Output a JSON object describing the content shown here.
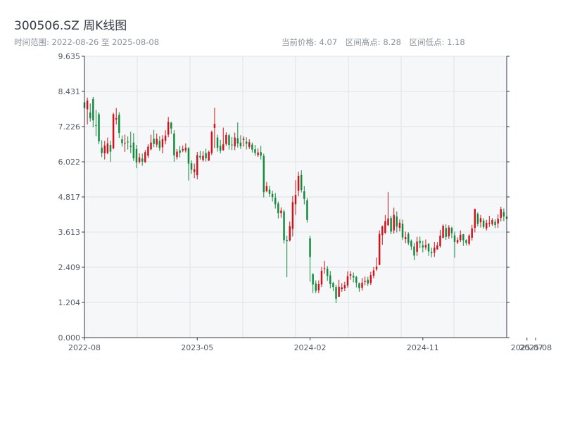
{
  "header": {
    "title": "300506.SZ 周K线图",
    "range_label": "时间范围: 2022-08-26 至 2025-08-08",
    "current_price": "当前价格: 4.07",
    "interval_high": "区间高点: 8.28",
    "interval_low": "区间低点: 1.18"
  },
  "colors": {
    "up": "#d0121b",
    "down": "#138a3c",
    "plot_bg": "#f6f7f9",
    "grid": "#dfe3e8",
    "axis": "#333a45"
  },
  "chart_data": {
    "type": "candlestick",
    "title": "300506.SZ 周K线图",
    "ylim": [
      0.0,
      9.635
    ],
    "y_ticks": [
      "0.000",
      "1.204",
      "2.409",
      "3.613",
      "4.817",
      "6.022",
      "7.226",
      "8.431",
      "9.635"
    ],
    "x_ticks": [
      "2022-08",
      "2023-05",
      "2024-02",
      "2024-11",
      "2025-07",
      "2025-08"
    ],
    "x_tick_positions": [
      0,
      39,
      78,
      117,
      153,
      156
    ],
    "grid": true,
    "up_color": "#d0121b",
    "down_color": "#138a3c",
    "candles": [
      [
        8.06,
        7.86,
        8.28,
        7.66
      ],
      [
        7.82,
        8.12,
        8.22,
        7.3
      ],
      [
        7.71,
        7.51,
        8.02,
        7.4
      ],
      [
        8.17,
        7.44,
        8.24,
        7.2
      ],
      [
        7.28,
        7.26,
        7.8,
        6.9
      ],
      [
        7.65,
        6.72,
        7.72,
        6.62
      ],
      [
        6.5,
        6.32,
        6.76,
        6.18
      ],
      [
        6.31,
        6.58,
        6.74,
        6.1
      ],
      [
        6.32,
        6.65,
        6.85,
        6.28
      ],
      [
        6.6,
        6.37,
        6.74,
        6.02
      ],
      [
        6.48,
        7.65,
        7.7,
        6.45
      ],
      [
        7.47,
        7.52,
        7.86,
        7.3
      ],
      [
        7.63,
        7.01,
        7.72,
        6.84
      ],
      [
        6.79,
        6.66,
        6.92,
        6.54
      ],
      [
        6.66,
        6.67,
        6.95,
        6.36
      ],
      [
        6.71,
        6.7,
        6.89,
        6.44
      ],
      [
        6.57,
        6.53,
        7.05,
        6.32
      ],
      [
        6.68,
        6.14,
        7.0,
        6.05
      ],
      [
        6.46,
        6.0,
        6.6,
        5.8
      ],
      [
        6.02,
        6.17,
        6.31,
        5.96
      ],
      [
        6.13,
        6.03,
        6.3,
        5.89
      ],
      [
        6.01,
        6.35,
        6.42,
        5.98
      ],
      [
        6.23,
        6.54,
        6.62,
        6.15
      ],
      [
        6.45,
        6.68,
        6.95,
        6.41
      ],
      [
        6.81,
        6.63,
        7.11,
        6.52
      ],
      [
        6.61,
        6.81,
        6.99,
        6.52
      ],
      [
        6.74,
        6.49,
        6.9,
        6.39
      ],
      [
        6.52,
        6.8,
        6.93,
        6.31
      ],
      [
        6.74,
        6.92,
        7.1,
        6.62
      ],
      [
        6.95,
        7.39,
        7.56,
        6.86
      ],
      [
        7.36,
        7.16,
        7.39,
        6.98
      ],
      [
        6.99,
        6.24,
        7.1,
        6.02
      ],
      [
        6.18,
        6.37,
        6.46,
        6.1
      ],
      [
        6.41,
        6.33,
        6.56,
        6.17
      ],
      [
        6.41,
        6.46,
        6.58,
        6.35
      ],
      [
        6.41,
        6.5,
        6.65,
        6.34
      ],
      [
        6.49,
        5.96,
        6.52,
        5.38
      ],
      [
        5.97,
        5.75,
        6.07,
        5.61
      ],
      [
        5.67,
        5.77,
        5.96,
        5.46
      ],
      [
        5.56,
        6.25,
        6.36,
        5.42
      ],
      [
        6.22,
        6.17,
        6.39,
        6.09
      ],
      [
        6.08,
        6.23,
        6.38,
        6.03
      ],
      [
        6.32,
        6.14,
        6.47,
        6.03
      ],
      [
        6.06,
        6.36,
        6.41,
        6.05
      ],
      [
        6.32,
        7.04,
        7.09,
        6.25
      ],
      [
        7.18,
        7.32,
        7.87,
        6.49
      ],
      [
        6.85,
        6.5,
        6.95,
        6.37
      ],
      [
        6.57,
        6.4,
        6.77,
        6.31
      ],
      [
        6.42,
        6.62,
        7.19,
        6.4
      ],
      [
        6.63,
        6.94,
        7.03,
        6.57
      ],
      [
        6.93,
        6.6,
        6.98,
        6.44
      ],
      [
        6.61,
        6.59,
        6.87,
        6.42
      ],
      [
        6.55,
        6.85,
        7.02,
        6.42
      ],
      [
        6.83,
        6.65,
        7.37,
        6.51
      ],
      [
        6.68,
        6.55,
        6.93,
        6.46
      ],
      [
        6.77,
        6.81,
        6.89,
        6.54
      ],
      [
        6.71,
        6.64,
        6.86,
        6.44
      ],
      [
        6.53,
        6.69,
        6.79,
        6.46
      ],
      [
        6.61,
        6.44,
        6.68,
        6.34
      ],
      [
        6.45,
        6.32,
        6.6,
        6.22
      ],
      [
        6.25,
        6.34,
        6.48,
        6.19
      ],
      [
        6.35,
        6.23,
        6.57,
        6.1
      ],
      [
        6.22,
        4.98,
        6.3,
        4.8
      ],
      [
        5.01,
        5.19,
        5.33,
        4.98
      ],
      [
        5.07,
        4.92,
        5.2,
        4.82
      ],
      [
        4.92,
        4.81,
        5.03,
        4.66
      ],
      [
        4.79,
        4.57,
        4.95,
        4.42
      ],
      [
        4.59,
        4.26,
        4.66,
        4.08
      ],
      [
        4.26,
        4.35,
        4.46,
        4.1
      ],
      [
        4.32,
        3.34,
        4.38,
        3.22
      ],
      [
        3.34,
        3.3,
        3.49,
        2.07
      ],
      [
        3.33,
        3.82,
        3.98,
        3.29
      ],
      [
        3.72,
        4.64,
        4.85,
        3.46
      ],
      [
        4.57,
        4.89,
        5.39,
        4.2
      ],
      [
        5.03,
        5.54,
        5.68,
        4.84
      ],
      [
        5.57,
        5.06,
        5.73,
        4.97
      ],
      [
        5.01,
        4.75,
        5.19,
        4.56
      ],
      [
        4.7,
        4.03,
        4.78,
        3.94
      ],
      [
        3.4,
        2.76,
        3.49,
        1.91
      ],
      [
        2.17,
        1.82,
        2.21,
        1.53
      ],
      [
        1.85,
        1.6,
        1.96,
        1.52
      ],
      [
        1.62,
        1.83,
        1.96,
        1.52
      ],
      [
        1.82,
        2.29,
        2.42,
        1.73
      ],
      [
        2.36,
        2.38,
        2.63,
        2.19
      ],
      [
        2.36,
        2.11,
        2.45,
        1.94
      ],
      [
        2.13,
        1.83,
        2.28,
        1.69
      ],
      [
        1.87,
        1.73,
        1.91,
        1.59
      ],
      [
        1.73,
        1.33,
        1.81,
        1.18
      ],
      [
        1.4,
        1.74,
        1.98,
        1.4
      ],
      [
        1.66,
        1.72,
        1.86,
        1.57
      ],
      [
        1.69,
        1.8,
        1.91,
        1.59
      ],
      [
        1.79,
        2.1,
        2.27,
        1.71
      ],
      [
        2.12,
        2.17,
        2.28,
        1.98
      ],
      [
        2.12,
        2.06,
        2.23,
        1.89
      ],
      [
        2.07,
        1.88,
        2.12,
        1.72
      ],
      [
        1.86,
        1.69,
        1.89,
        1.57
      ],
      [
        1.71,
        1.88,
        2.04,
        1.61
      ],
      [
        1.91,
        1.94,
        2.09,
        1.79
      ],
      [
        1.98,
        1.85,
        2.08,
        1.77
      ],
      [
        1.87,
        2.14,
        2.25,
        1.8
      ],
      [
        2.12,
        2.3,
        2.42,
        2.03
      ],
      [
        2.34,
        2.43,
        2.74,
        2.28
      ],
      [
        2.49,
        3.55,
        3.67,
        2.48
      ],
      [
        3.51,
        3.81,
        3.84,
        3.18
      ],
      [
        3.59,
        3.99,
        4.2,
        3.55
      ],
      [
        3.85,
        4.08,
        4.98,
        3.82
      ],
      [
        4.09,
        3.63,
        4.17,
        3.54
      ],
      [
        3.67,
        4.2,
        4.45,
        3.56
      ],
      [
        4.15,
        3.8,
        4.32,
        3.6
      ],
      [
        3.76,
        3.93,
        4.05,
        3.64
      ],
      [
        3.9,
        3.43,
        4.04,
        3.34
      ],
      [
        3.37,
        3.44,
        3.63,
        3.23
      ],
      [
        3.55,
        3.24,
        3.61,
        3.17
      ],
      [
        3.31,
        3.12,
        3.36,
        3.0
      ],
      [
        3.12,
        2.81,
        3.24,
        2.65
      ],
      [
        2.94,
        3.29,
        3.45,
        2.8
      ],
      [
        3.31,
        3.24,
        3.46,
        3.06
      ],
      [
        3.16,
        3.09,
        3.32,
        2.92
      ],
      [
        3.09,
        3.17,
        3.36,
        3.0
      ],
      [
        3.21,
        2.95,
        3.23,
        2.8
      ],
      [
        2.93,
        2.89,
        3.08,
        2.75
      ],
      [
        2.91,
        3.08,
        3.28,
        2.76
      ],
      [
        3.02,
        3.16,
        3.27,
        3.01
      ],
      [
        3.13,
        3.49,
        3.69,
        3.08
      ],
      [
        3.42,
        3.83,
        3.88,
        3.4
      ],
      [
        3.75,
        3.45,
        3.88,
        3.35
      ],
      [
        3.47,
        3.77,
        3.85,
        3.38
      ],
      [
        3.76,
        3.57,
        3.8,
        3.4
      ],
      [
        3.5,
        3.28,
        3.63,
        2.73
      ],
      [
        3.26,
        3.34,
        3.43,
        3.2
      ],
      [
        3.34,
        3.52,
        3.67,
        3.27
      ],
      [
        3.54,
        3.33,
        3.55,
        3.14
      ],
      [
        3.34,
        3.24,
        3.37,
        3.16
      ],
      [
        3.21,
        3.49,
        3.54,
        3.15
      ],
      [
        3.42,
        3.74,
        3.86,
        3.32
      ],
      [
        3.76,
        4.4,
        4.42,
        3.6
      ],
      [
        4.24,
        3.9,
        4.29,
        3.81
      ],
      [
        3.95,
        4.09,
        4.2,
        3.77
      ],
      [
        4.01,
        3.79,
        4.09,
        3.73
      ],
      [
        3.74,
        3.93,
        4.03,
        3.67
      ],
      [
        3.92,
        3.93,
        4.17,
        3.79
      ],
      [
        3.89,
        4.02,
        4.09,
        3.83
      ],
      [
        3.97,
        3.85,
        4.06,
        3.75
      ],
      [
        3.91,
        4.07,
        4.22,
        3.76
      ],
      [
        4.1,
        4.4,
        4.48,
        3.98
      ],
      [
        4.3,
        4.15,
        4.42,
        3.99
      ],
      [
        4.15,
        4.07,
        4.29,
        3.97
      ]
    ]
  }
}
